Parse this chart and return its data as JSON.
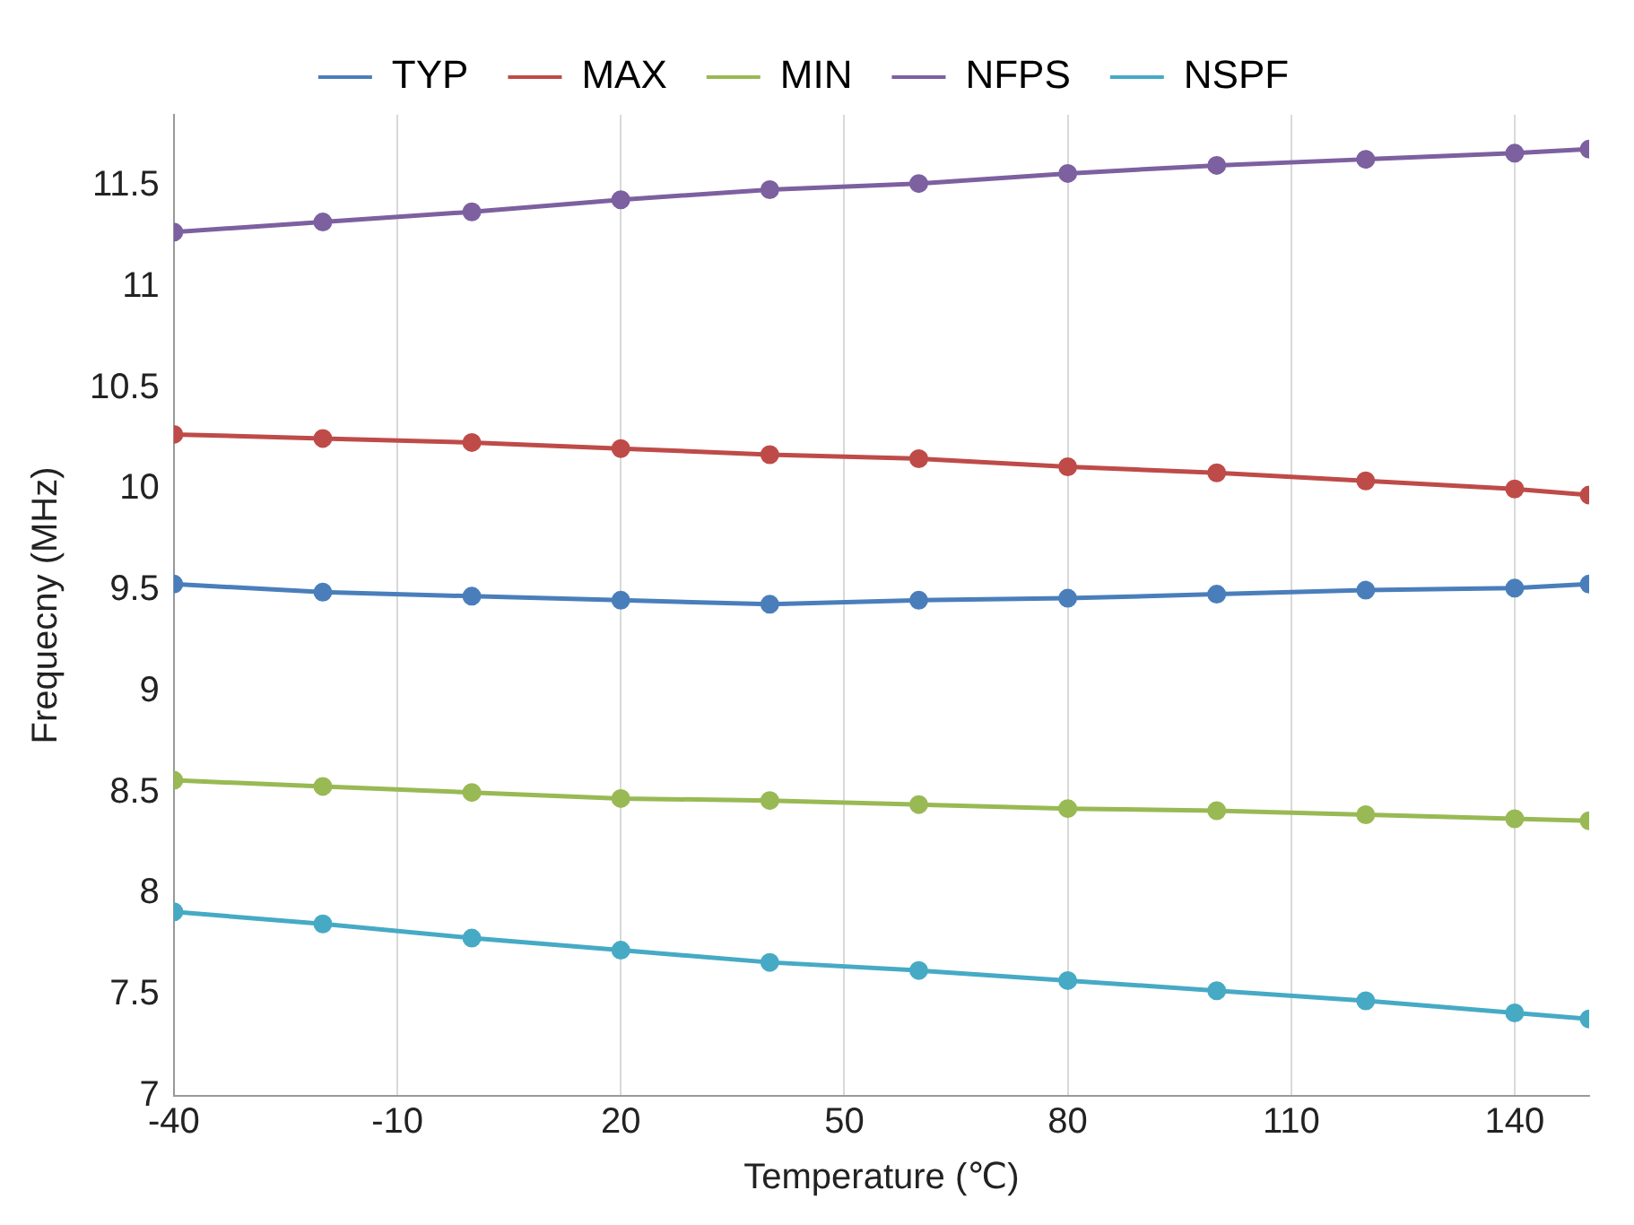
{
  "chart_data": {
    "type": "line",
    "xlabel": "Temperature (℃)",
    "ylabel": "Frequecny (MHz)",
    "x": [
      -40,
      -20,
      0,
      20,
      40,
      60,
      80,
      100,
      120,
      140,
      150
    ],
    "series": [
      {
        "name": "TYP",
        "color": "#4a7ebb",
        "values": [
          9.53,
          9.49,
          9.47,
          9.45,
          9.43,
          9.45,
          9.46,
          9.48,
          9.5,
          9.51,
          9.53
        ]
      },
      {
        "name": "MAX",
        "color": "#be4b48",
        "values": [
          10.27,
          10.25,
          10.23,
          10.2,
          10.17,
          10.15,
          10.11,
          10.08,
          10.04,
          10.0,
          9.97
        ]
      },
      {
        "name": "MIN",
        "color": "#98b954",
        "values": [
          8.56,
          8.53,
          8.5,
          8.47,
          8.46,
          8.44,
          8.42,
          8.41,
          8.39,
          8.37,
          8.36
        ]
      },
      {
        "name": "NFPS",
        "color": "#7d60a0",
        "values": [
          11.27,
          11.32,
          11.37,
          11.43,
          11.48,
          11.51,
          11.56,
          11.6,
          11.63,
          11.66,
          11.68
        ]
      },
      {
        "name": "NSPF",
        "color": "#46aac5",
        "values": [
          7.91,
          7.85,
          7.78,
          7.72,
          7.66,
          7.62,
          7.57,
          7.52,
          7.47,
          7.41,
          7.38
        ]
      }
    ],
    "xlim": [
      -40,
      150
    ],
    "xticks": [
      -40,
      -10,
      20,
      50,
      80,
      110,
      140
    ],
    "ylim": [
      7,
      11.85
    ],
    "yticks": [
      7,
      7.5,
      8,
      8.5,
      9,
      9.5,
      10,
      10.5,
      11,
      11.5
    ],
    "grid": "x",
    "legend": "top",
    "marker": "circle",
    "line_style": "solid"
  }
}
